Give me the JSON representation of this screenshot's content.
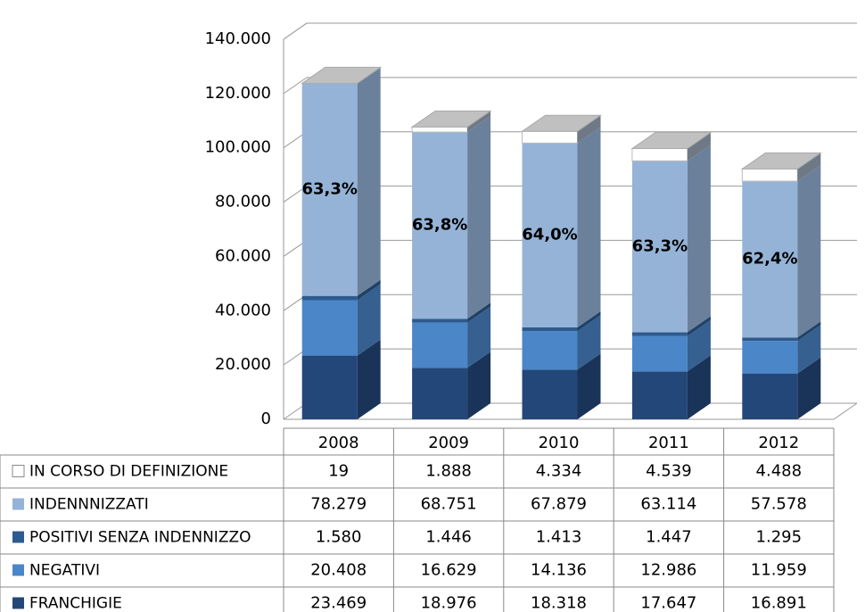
{
  "chart_data": {
    "type": "bar",
    "stacked": true,
    "categories": [
      "2008",
      "2009",
      "2010",
      "2011",
      "2012"
    ],
    "series": [
      {
        "name": "FRANCHIGIE",
        "color": "#24477a",
        "values": [
          23469,
          18976,
          18318,
          17647,
          16891
        ],
        "value_labels": [
          "23.469",
          "18.976",
          "18.318",
          "17.647",
          "16.891"
        ]
      },
      {
        "name": "NEGATIVI",
        "color": "#4a86c8",
        "values": [
          20408,
          16629,
          14136,
          12986,
          11959
        ],
        "value_labels": [
          "20.408",
          "16.629",
          "14.136",
          "12.986",
          "11.959"
        ]
      },
      {
        "name": "POSITIVI SENZA INDENNIZZO",
        "color": "#2d5b8f",
        "values": [
          1580,
          1446,
          1413,
          1447,
          1295
        ],
        "value_labels": [
          "1.580",
          "1.446",
          "1.413",
          "1.447",
          "1.295"
        ]
      },
      {
        "name": "INDENNNIZZATI",
        "color": "#95b3d7",
        "values": [
          78279,
          68751,
          67879,
          63114,
          57578
        ],
        "value_labels": [
          "78.279",
          "68.751",
          "67.879",
          "63.114",
          "57.578"
        ]
      },
      {
        "name": "IN CORSO DI DEFINIZIONE",
        "color": "#ffffff",
        "values": [
          19,
          1888,
          4334,
          4539,
          4488
        ],
        "value_labels": [
          "19",
          "1.888",
          "4.334",
          "4.539",
          "4.488"
        ]
      }
    ],
    "annotations": [
      "63,3%",
      "63,8%",
      "64,0%",
      "63,3%",
      "62,4%"
    ],
    "ylim": [
      0,
      140000
    ],
    "yticks": [
      0,
      {
        "value": 20000,
        "label": "20.000"
      },
      {
        "value": 40000,
        "label": "40.000"
      },
      {
        "value": 60000,
        "label": "60.000"
      },
      {
        "value": 80000,
        "label": "80.000"
      },
      {
        "value": 100000,
        "label": "100.000"
      },
      {
        "value": 120000,
        "label": "120.000"
      },
      {
        "value": 140000,
        "label": "140.000"
      }
    ],
    "grid": true
  }
}
